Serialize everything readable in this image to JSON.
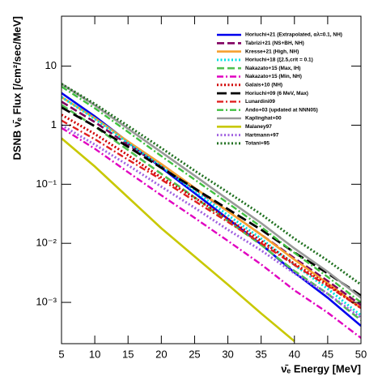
{
  "chart_data": {
    "type": "line",
    "x_label": "ν̄ₑ Energy [MeV]",
    "y_label": "DSNB ν̄ₑ Flux [/cm²/sec/MeV]",
    "x": [
      5,
      10,
      15,
      20,
      25,
      30,
      35,
      40,
      45,
      50
    ],
    "xlim": [
      5,
      50
    ],
    "xticks": [
      5,
      10,
      15,
      20,
      25,
      30,
      35,
      40,
      45,
      50
    ],
    "ylim": [
      0.0002,
      70
    ],
    "yticks": [
      {
        "value": 0.001,
        "label": "10⁻³"
      },
      {
        "value": 0.01,
        "label": "10⁻²"
      },
      {
        "value": 0.1,
        "label": "10⁻¹"
      },
      1,
      10
    ],
    "y_log": true,
    "grid": false,
    "legend": "upper right",
    "series": [
      {
        "name": "Horiuchi+21 (Extrapolated, αλ=0.1, NH)",
        "color": "#0000ee",
        "dash": "solid",
        "values": [
          3.5,
          1.41,
          0.52,
          0.19,
          0.071,
          0.026,
          0.0096,
          0.0032,
          0.0012,
          0.0004
        ]
      },
      {
        "name": "Tabrizi+21 (NS+BH, NH)",
        "color": "#800060",
        "dash": "dashed",
        "values": [
          2.5,
          1.13,
          0.47,
          0.2,
          0.083,
          0.035,
          0.014,
          0.0056,
          0.0023,
          0.0009
        ]
      },
      {
        "name": "Kresse+21 (High, NH)",
        "color": "#f5a030",
        "dash": "solid",
        "values": [
          3.0,
          1.32,
          0.53,
          0.22,
          0.087,
          0.035,
          0.014,
          0.0053,
          0.0021,
          0.0008
        ]
      },
      {
        "name": "Horiuchi+18 (ξ2.5,crit = 0.1)",
        "color": "#00e0e0",
        "dash": "dotted",
        "values": [
          3.0,
          1.28,
          0.5,
          0.2,
          0.077,
          0.03,
          0.012,
          0.0043,
          0.0017,
          0.0006
        ]
      },
      {
        "name": "Nakazato+15 (Max, IH)",
        "color": "#50c050",
        "dash": "dashed",
        "values": [
          2.2,
          0.95,
          0.38,
          0.15,
          0.06,
          0.024,
          0.0094,
          0.0034,
          0.0014,
          0.0005
        ]
      },
      {
        "name": "Nakazato+15 (Min, NH)",
        "color": "#e000c0",
        "dash": "dashdot",
        "values": [
          0.9,
          0.4,
          0.16,
          0.065,
          0.027,
          0.011,
          0.0044,
          0.0016,
          0.00067,
          0.00025
        ]
      },
      {
        "name": "Galais+10 (NH)",
        "color": "#d00000",
        "dash": "dotted",
        "values": [
          1.5,
          0.71,
          0.31,
          0.13,
          0.059,
          0.026,
          0.011,
          0.0045,
          0.002,
          0.0008
        ]
      },
      {
        "name": "Horiuchi+09 (6 MeV, Max)",
        "color": "#000000",
        "dash": "longdash",
        "values": [
          2.0,
          0.96,
          0.43,
          0.19,
          0.085,
          0.038,
          0.017,
          0.007,
          0.0031,
          0.0013
        ]
      },
      {
        "name": "Lunardini09",
        "color": "#e02020",
        "dash": "dashdot",
        "values": [
          1.2,
          0.58,
          0.26,
          0.12,
          0.052,
          0.023,
          0.01,
          0.0043,
          0.0019,
          0.0008
        ]
      },
      {
        "name": "Ando+03 (updated at NNN05)",
        "color": "#40c040",
        "dash": "dashdot",
        "values": [
          4.5,
          1.94,
          0.77,
          0.3,
          0.12,
          0.048,
          0.019,
          0.0069,
          0.0027,
          0.001
        ]
      },
      {
        "name": "Kaplinghat+00",
        "color": "#999999",
        "dash": "solid",
        "values": [
          5.0,
          2.17,
          0.87,
          0.35,
          0.14,
          0.055,
          0.022,
          0.0082,
          0.0033,
          0.0012
        ]
      },
      {
        "name": "Malaney97",
        "color": "#c8c800",
        "dash": "solid",
        "values": [
          0.6,
          0.2,
          0.06,
          0.018,
          0.006,
          0.002,
          0.00065,
          0.00022,
          null,
          null
        ]
      },
      {
        "name": "Hartmann+97",
        "color": "#a060e0",
        "dash": "dotted",
        "values": [
          1.0,
          0.47,
          0.21,
          0.091,
          0.04,
          0.017,
          0.0076,
          0.0031,
          0.0014,
          0.00055
        ]
      },
      {
        "name": "Totani+95",
        "color": "#207020",
        "dash": "dotted",
        "values": [
          5.0,
          2.29,
          0.97,
          0.41,
          0.17,
          0.073,
          0.031,
          0.012,
          0.0051,
          0.002
        ]
      }
    ]
  }
}
